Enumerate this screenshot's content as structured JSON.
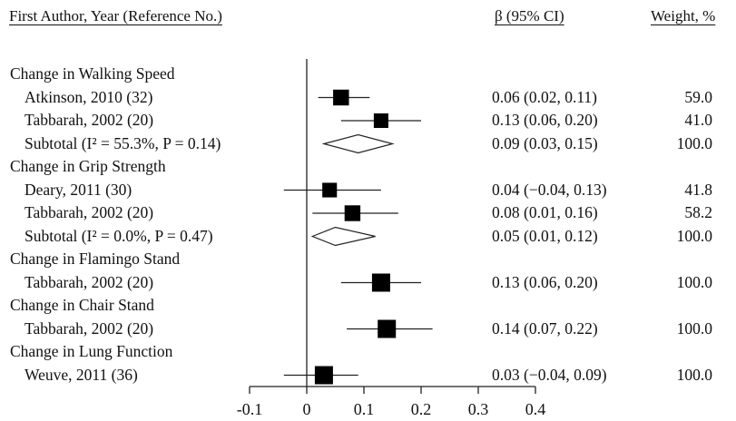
{
  "headers": {
    "author": "First Author, Year (Reference No.)",
    "beta": "β (95% CI)",
    "weight": "Weight, %"
  },
  "chart_data": {
    "type": "forest",
    "xlim": [
      -0.1,
      0.4
    ],
    "xticks": [
      "-0.1",
      "0",
      "0.1",
      "0.2",
      "0.3",
      "0.4"
    ],
    "reference_line": 0,
    "rows": [
      {
        "kind": "group",
        "label": "Change in Walking Speed"
      },
      {
        "kind": "study",
        "label": "Atkinson, 2010 (32)",
        "beta": 0.06,
        "lo": 0.02,
        "hi": 0.11,
        "ci_text": "0.06 (0.02, 0.11)",
        "weight": "59.0"
      },
      {
        "kind": "study",
        "label": "Tabbarah, 2002 (20)",
        "beta": 0.13,
        "lo": 0.06,
        "hi": 0.2,
        "ci_text": "0.13 (0.06, 0.20)",
        "weight": "41.0"
      },
      {
        "kind": "subtotal",
        "label": "Subtotal",
        "het": "(I² = 55.3%, P = 0.14)",
        "beta": 0.09,
        "lo": 0.03,
        "hi": 0.15,
        "ci_text": "0.09 (0.03, 0.15)",
        "weight": "100.0"
      },
      {
        "kind": "group",
        "label": "Change in Grip Strength"
      },
      {
        "kind": "study",
        "label": "Deary, 2011 (30)",
        "beta": 0.04,
        "lo": -0.04,
        "hi": 0.13,
        "ci_text": "0.04 (−0.04, 0.13)",
        "weight": "41.8"
      },
      {
        "kind": "study",
        "label": "Tabbarah, 2002 (20)",
        "beta": 0.08,
        "lo": 0.01,
        "hi": 0.16,
        "ci_text": "0.08 (0.01, 0.16)",
        "weight": "58.2"
      },
      {
        "kind": "subtotal",
        "label": "Subtotal",
        "het": "(I² = 0.0%, P = 0.47)",
        "beta": 0.05,
        "lo": 0.01,
        "hi": 0.12,
        "ci_text": "0.05 (0.01, 0.12)",
        "weight": "100.0"
      },
      {
        "kind": "group",
        "label": "Change in Flamingo Stand"
      },
      {
        "kind": "study",
        "label": "Tabbarah, 2002 (20)",
        "beta": 0.13,
        "lo": 0.06,
        "hi": 0.2,
        "ci_text": "0.13 (0.06, 0.20)",
        "weight": "100.0"
      },
      {
        "kind": "group",
        "label": "Change in Chair Stand"
      },
      {
        "kind": "study",
        "label": "Tabbarah, 2002 (20)",
        "beta": 0.14,
        "lo": 0.07,
        "hi": 0.22,
        "ci_text": "0.14 (0.07, 0.22)",
        "weight": "100.0"
      },
      {
        "kind": "group",
        "label": "Change in Lung Function"
      },
      {
        "kind": "study",
        "label": "Weuve, 2011 (36)",
        "beta": 0.03,
        "lo": -0.04,
        "hi": 0.09,
        "ci_text": "0.03 (−0.04, 0.09)",
        "weight": "100.0"
      }
    ]
  }
}
